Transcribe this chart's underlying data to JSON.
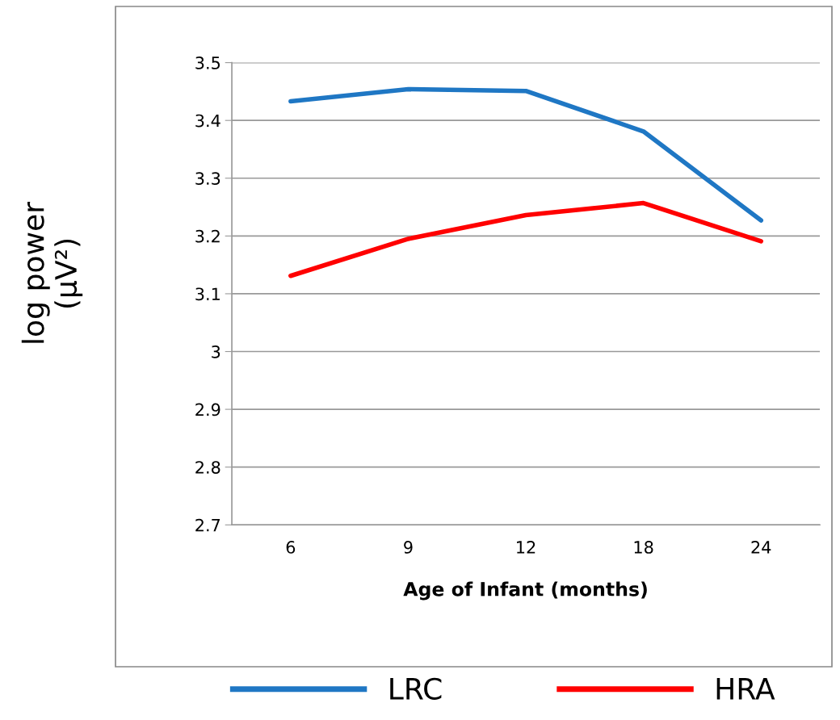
{
  "chart_data": {
    "type": "line",
    "xlabel": "Age of Infant (months)",
    "ylabel": "log power\n(μV²)",
    "categories": [
      "6",
      "9",
      "12",
      "18",
      "24"
    ],
    "series": [
      {
        "name": "LRC",
        "color": "#1f77c4",
        "values": [
          3.433,
          3.454,
          3.451,
          3.381,
          3.227
        ]
      },
      {
        "name": "HRA",
        "color": "#ff0000",
        "values": [
          3.131,
          3.195,
          3.236,
          3.257,
          3.191
        ]
      }
    ],
    "ylim": [
      2.7,
      3.5
    ],
    "yticks": [
      {
        "value": 2.7,
        "label": "2.7"
      },
      {
        "value": 2.8,
        "label": "2.8"
      },
      {
        "value": 2.9,
        "label": "2.9"
      },
      {
        "value": 3,
        "label": "3"
      },
      {
        "value": 3.1,
        "label": "3.1"
      },
      {
        "value": 3.2,
        "label": "3.2"
      },
      {
        "value": 3.3,
        "label": "3.3"
      },
      {
        "value": 3.4,
        "label": "3.4"
      },
      {
        "value": 3.5,
        "label": "3.5"
      }
    ],
    "grid": "y",
    "legend": "bottom",
    "marker": "none",
    "line_style": "solid"
  }
}
